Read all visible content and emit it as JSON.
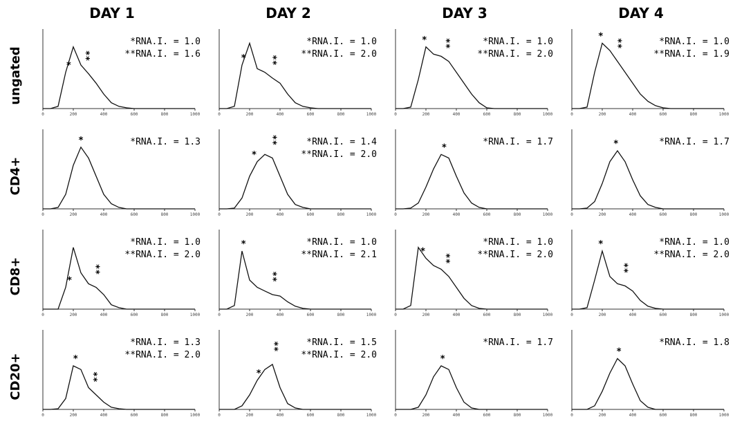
{
  "chart_data": {
    "type": "histogram-grid",
    "columns": [
      "DAY 1",
      "DAY 2",
      "DAY 3",
      "DAY 4"
    ],
    "rows": [
      "ungated",
      "CD4+",
      "CD8+",
      "CD20+"
    ],
    "xlim": [
      0,
      1000
    ],
    "ylim": [
      0,
      1
    ],
    "xticks": [
      0,
      200,
      400,
      600,
      800,
      1000
    ],
    "curve_x": [
      0,
      50,
      100,
      150,
      200,
      250,
      300,
      350,
      400,
      450,
      500,
      550,
      600,
      650,
      700,
      750,
      800,
      850,
      900,
      950,
      1000
    ],
    "panels": [
      [
        {
          "labels": [
            "*RNA.I. = 1.0",
            "**RNA.I. = 1.6"
          ],
          "peaks": [
            {
              "x": 170,
              "label": "*"
            },
            {
              "x": 280,
              "label": "**"
            }
          ],
          "values": [
            0,
            0,
            0.03,
            0.5,
            0.85,
            0.6,
            0.48,
            0.35,
            0.2,
            0.08,
            0.03,
            0.01,
            0,
            0,
            0,
            0,
            0,
            0,
            0,
            0,
            0
          ]
        },
        {
          "labels": [
            "*RNA.I. = 1.0",
            "**RNA.I. = 2.0"
          ],
          "peaks": [
            {
              "x": 160,
              "label": "*"
            },
            {
              "x": 350,
              "label": "**"
            }
          ],
          "values": [
            0,
            0,
            0.03,
            0.6,
            0.9,
            0.55,
            0.5,
            0.42,
            0.35,
            0.2,
            0.08,
            0.03,
            0.01,
            0,
            0,
            0,
            0,
            0,
            0,
            0,
            0
          ]
        },
        {
          "labels": [
            "*RNA.I. = 1.0",
            "**RNA.I. = 2.0"
          ],
          "peaks": [
            {
              "x": 190,
              "label": "*"
            },
            {
              "x": 330,
              "label": "**"
            }
          ],
          "values": [
            0,
            0,
            0.02,
            0.4,
            0.85,
            0.75,
            0.72,
            0.65,
            0.5,
            0.35,
            0.2,
            0.08,
            0.01,
            0,
            0,
            0,
            0,
            0,
            0,
            0,
            0
          ]
        },
        {
          "labels": [
            "*RNA.I. = 1.0",
            "**RNA.I. = 1.9"
          ],
          "peaks": [
            {
              "x": 190,
              "label": "*"
            },
            {
              "x": 300,
              "label": "**"
            }
          ],
          "values": [
            0,
            0,
            0.02,
            0.5,
            0.9,
            0.8,
            0.65,
            0.5,
            0.35,
            0.2,
            0.1,
            0.04,
            0.01,
            0,
            0,
            0,
            0,
            0,
            0,
            0,
            0
          ]
        }
      ],
      [
        {
          "labels": [
            "*RNA.I. = 1.3"
          ],
          "peaks": [
            {
              "x": 250,
              "label": "*"
            }
          ],
          "values": [
            0,
            0,
            0.02,
            0.2,
            0.6,
            0.85,
            0.7,
            0.45,
            0.2,
            0.07,
            0.02,
            0,
            0,
            0,
            0,
            0,
            0,
            0,
            0,
            0,
            0
          ]
        },
        {
          "labels": [
            "*RNA.I. = 1.4",
            "**RNA.I. = 2.0"
          ],
          "peaks": [
            {
              "x": 230,
              "label": "*"
            },
            {
              "x": 350,
              "label": "**"
            }
          ],
          "values": [
            0,
            0,
            0.01,
            0.15,
            0.45,
            0.65,
            0.75,
            0.7,
            0.45,
            0.2,
            0.06,
            0.02,
            0,
            0,
            0,
            0,
            0,
            0,
            0,
            0,
            0
          ]
        },
        {
          "labels": [
            "*RNA.I. = 1.7"
          ],
          "peaks": [
            {
              "x": 320,
              "label": "*"
            }
          ],
          "values": [
            0,
            0,
            0.01,
            0.08,
            0.3,
            0.55,
            0.75,
            0.7,
            0.45,
            0.22,
            0.08,
            0.02,
            0,
            0,
            0,
            0,
            0,
            0,
            0,
            0,
            0
          ]
        },
        {
          "labels": [
            "*RNA.I. = 1.7"
          ],
          "peaks": [
            {
              "x": 290,
              "label": "*"
            }
          ],
          "values": [
            0,
            0,
            0.01,
            0.1,
            0.35,
            0.65,
            0.8,
            0.65,
            0.4,
            0.18,
            0.06,
            0.02,
            0,
            0,
            0,
            0,
            0,
            0,
            0,
            0,
            0
          ]
        }
      ],
      [
        {
          "labels": [
            "*RNA.I. = 1.0",
            "**RNA.I. = 2.0"
          ],
          "peaks": [
            {
              "x": 175,
              "label": "*"
            },
            {
              "x": 345,
              "label": "**"
            }
          ],
          "values": [
            0,
            0,
            0,
            0.3,
            0.85,
            0.5,
            0.35,
            0.3,
            0.2,
            0.06,
            0.02,
            0,
            0,
            0,
            0,
            0,
            0,
            0,
            0,
            0,
            0
          ]
        },
        {
          "labels": [
            "*RNA.I. = 1.0",
            "**RNA.I. = 2.1"
          ],
          "peaks": [
            {
              "x": 160,
              "label": "*"
            },
            {
              "x": 350,
              "label": "**"
            }
          ],
          "values": [
            0,
            0,
            0.05,
            0.8,
            0.4,
            0.3,
            0.25,
            0.2,
            0.18,
            0.1,
            0.04,
            0.01,
            0,
            0,
            0,
            0,
            0,
            0,
            0,
            0,
            0
          ]
        },
        {
          "labels": [
            "*RNA.I. = 1.0",
            "**RNA.I. = 2.0"
          ],
          "peaks": [
            {
              "x": 180,
              "label": "*"
            },
            {
              "x": 330,
              "label": "**"
            }
          ],
          "values": [
            0,
            0,
            0.05,
            0.85,
            0.7,
            0.6,
            0.55,
            0.45,
            0.3,
            0.15,
            0.05,
            0.01,
            0,
            0,
            0,
            0,
            0,
            0,
            0,
            0,
            0
          ]
        },
        {
          "labels": [
            "*RNA.I. = 1.0",
            "**RNA.I. = 2.0"
          ],
          "peaks": [
            {
              "x": 190,
              "label": "*"
            },
            {
              "x": 340,
              "label": "**"
            }
          ],
          "values": [
            0,
            0,
            0.02,
            0.4,
            0.8,
            0.45,
            0.35,
            0.32,
            0.25,
            0.12,
            0.04,
            0.01,
            0,
            0,
            0,
            0,
            0,
            0,
            0,
            0,
            0
          ]
        }
      ],
      [
        {
          "labels": [
            "*RNA.I. = 1.3",
            "**RNA.I. = 2.0"
          ],
          "peaks": [
            {
              "x": 215,
              "label": "*"
            },
            {
              "x": 330,
              "label": "**"
            }
          ],
          "values": [
            0,
            0,
            0.01,
            0.15,
            0.6,
            0.55,
            0.3,
            0.2,
            0.1,
            0.03,
            0.01,
            0,
            0,
            0,
            0,
            0,
            0,
            0,
            0,
            0,
            0
          ]
        },
        {
          "labels": [
            "*RNA.I. = 1.5",
            "**RNA.I. = 2.0"
          ],
          "peaks": [
            {
              "x": 260,
              "label": "*"
            },
            {
              "x": 360,
              "label": "**"
            }
          ],
          "values": [
            0,
            0,
            0,
            0.05,
            0.2,
            0.4,
            0.55,
            0.62,
            0.3,
            0.08,
            0.02,
            0,
            0,
            0,
            0,
            0,
            0,
            0,
            0,
            0,
            0
          ]
        },
        {
          "labels": [
            "*RNA.I. = 1.7"
          ],
          "peaks": [
            {
              "x": 310,
              "label": "*"
            }
          ],
          "values": [
            0,
            0,
            0,
            0.03,
            0.2,
            0.45,
            0.6,
            0.55,
            0.3,
            0.1,
            0.02,
            0,
            0,
            0,
            0,
            0,
            0,
            0,
            0,
            0,
            0
          ]
        },
        {
          "labels": [
            "*RNA.I. = 1.8"
          ],
          "peaks": [
            {
              "x": 310,
              "label": "*"
            }
          ],
          "values": [
            0,
            0,
            0,
            0.05,
            0.25,
            0.5,
            0.7,
            0.6,
            0.35,
            0.12,
            0.03,
            0,
            0,
            0,
            0,
            0,
            0,
            0,
            0,
            0,
            0
          ]
        }
      ]
    ]
  }
}
